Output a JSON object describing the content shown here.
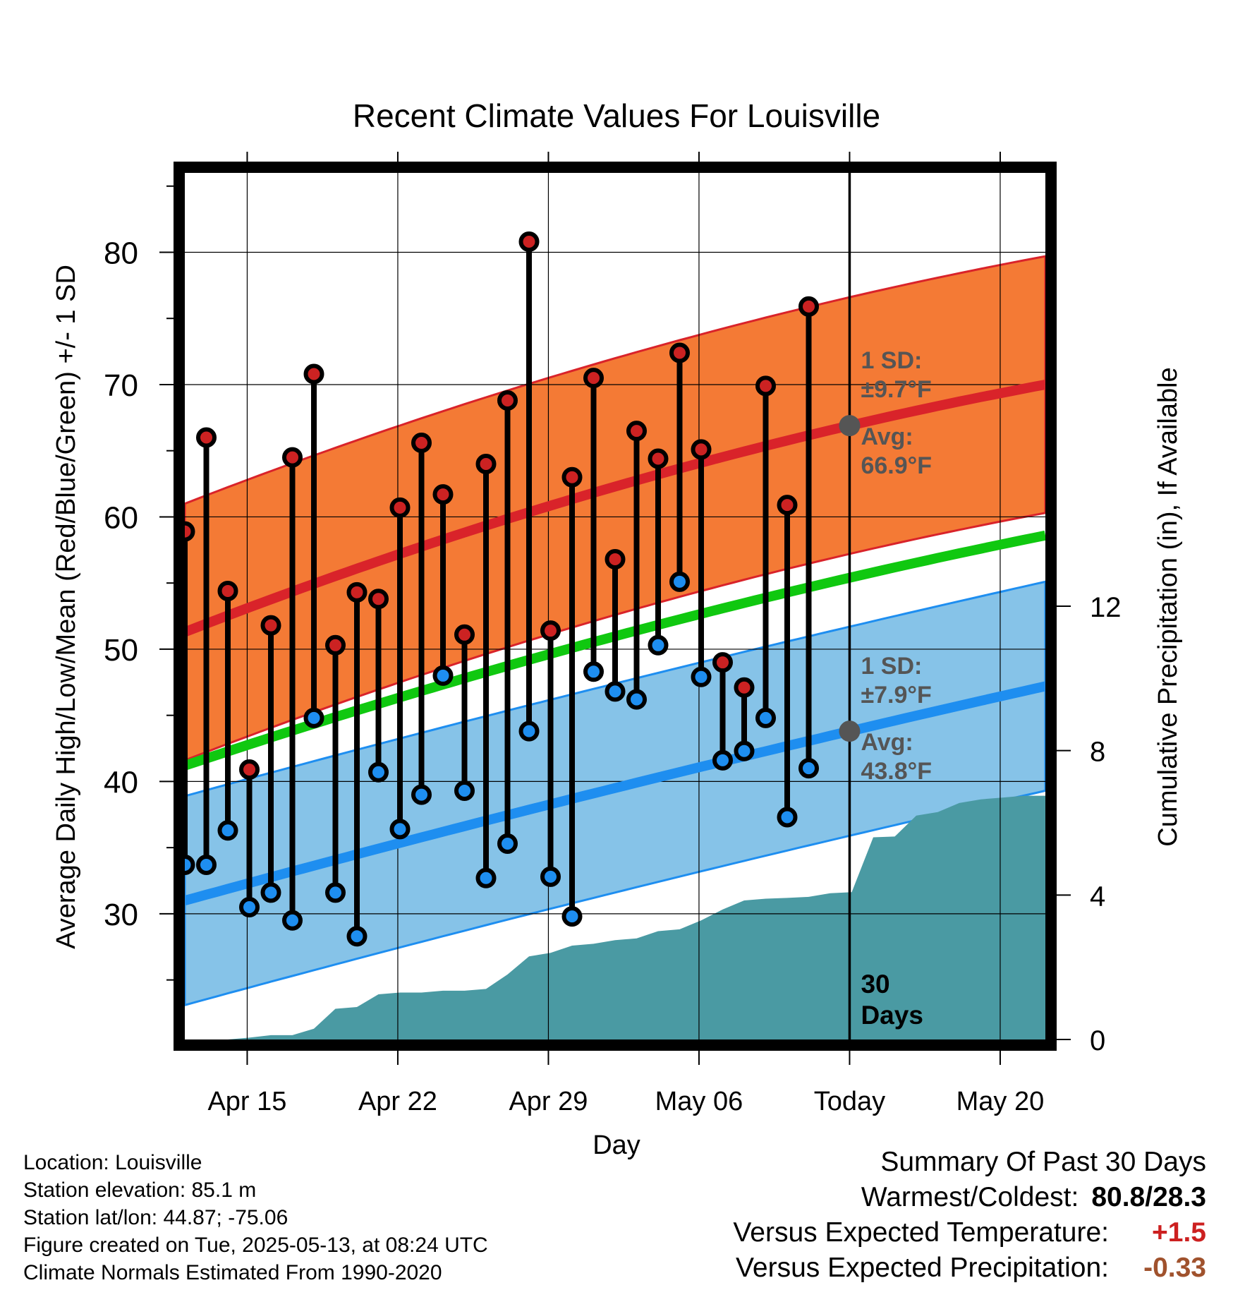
{
  "chart_data": {
    "type": "line",
    "title": "Recent Climate Values For Louisville",
    "xlabel": "Day",
    "ylabel": "Average Daily High/Low/Mean (Red/Blue/Green) +/- 1 SD",
    "y2label": "Cumulative Precipitation (in), If Available",
    "x_tick_labels": [
      "Apr 15",
      "Apr 22",
      "Apr 29",
      "May 06",
      "Today",
      "May 20"
    ],
    "y_ticks": [
      30,
      40,
      50,
      60,
      70,
      80
    ],
    "y2_ticks": [
      0,
      4,
      8,
      12
    ],
    "ylim": [
      20.5,
      86
    ],
    "y2lim": [
      0,
      24
    ],
    "xlim": [
      0,
      40
    ],
    "x_tick_positions": [
      2.9,
      9.9,
      16.9,
      23.9,
      30.9,
      37.9
    ],
    "today_x": 30.9,
    "highs": [
      58.9,
      66.0,
      54.4,
      40.9,
      51.8,
      64.5,
      70.8,
      50.3,
      54.3,
      53.8,
      60.7,
      65.6,
      61.7,
      51.1,
      64.0,
      68.8,
      80.8,
      51.4,
      63.0,
      70.5,
      56.8,
      66.5,
      64.4,
      72.4,
      65.1,
      49.0,
      47.1,
      69.9,
      60.9,
      75.9
    ],
    "lows": [
      33.7,
      33.7,
      36.3,
      30.5,
      31.6,
      29.5,
      44.8,
      31.6,
      28.3,
      40.7,
      36.4,
      39.0,
      48.0,
      39.3,
      32.7,
      35.3,
      43.8,
      32.8,
      29.8,
      48.3,
      46.8,
      46.2,
      50.3,
      55.1,
      47.9,
      41.6,
      42.3,
      44.8,
      37.3,
      41.0
    ],
    "low_is_red": [
      false,
      false,
      false,
      false,
      false,
      false,
      false,
      false,
      false,
      false,
      false,
      false,
      false,
      false,
      false,
      false,
      false,
      false,
      false,
      false,
      false,
      false,
      false,
      false,
      false,
      false,
      false,
      false,
      false,
      false
    ],
    "normal_high": {
      "start": 51.3,
      "today": 66.9,
      "end": 70.0
    },
    "normal_low": {
      "start": 31.0,
      "today": 43.8,
      "end": 47.2
    },
    "normal_mean": {
      "start": 41.2,
      "today": 55.4,
      "end": 58.6
    },
    "high_sd": 9.7,
    "low_sd": 7.9,
    "precip_cumulative": [
      0,
      0,
      0,
      0.05,
      0.12,
      0.12,
      0.3,
      0.85,
      0.9,
      1.25,
      1.3,
      1.3,
      1.35,
      1.35,
      1.4,
      1.8,
      2.3,
      2.4,
      2.6,
      2.65,
      2.75,
      2.8,
      3.0,
      3.05,
      3.3,
      3.6,
      3.85,
      3.9,
      3.92,
      3.95,
      4.05,
      4.08,
      5.6,
      5.62,
      6.2,
      6.3,
      6.55,
      6.65,
      6.7,
      6.75,
      6.75
    ],
    "precip_final": 6.75,
    "annotations": {
      "high_sd_label": "1 SD:",
      "high_sd_value": "±9.7°F",
      "high_avg_label": "Avg:",
      "high_avg_value": "66.9°F",
      "low_sd_label": "1 SD:",
      "low_sd_value": "±7.9°F",
      "low_avg_label": "Avg:",
      "low_avg_value": "43.8°F",
      "days_num": "30",
      "days_label": "Days"
    },
    "colors": {
      "high_band": "#f47a35",
      "high_line": "#d9232a",
      "low_band": "#86c3e8",
      "low_line": "#1e8ef0",
      "mean_line": "#10c810",
      "precip": "#4a9aa3",
      "annotation": "#555555"
    }
  },
  "info": {
    "location": "Location: Louisville",
    "elevation": "Station elevation: 85.1 m",
    "latlon": "Station lat/lon: 44.87; -75.06",
    "created": "Figure created on Tue, 2025-05-13, at 08:24 UTC",
    "normals": "Climate Normals Estimated From 1990-2020"
  },
  "summary": {
    "title": "Summary Of Past 30 Days",
    "warm_cold_label": "Warmest/Coldest:",
    "warm_cold_value": "80.8/28.3",
    "temp_label": "Versus Expected Temperature:",
    "temp_value": "+1.5",
    "precip_label": "Versus Expected Precipitation:",
    "precip_value": "-0.33"
  }
}
